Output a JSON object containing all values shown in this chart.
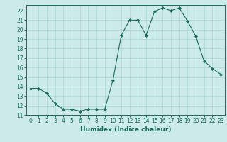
{
  "x": [
    0,
    1,
    2,
    3,
    4,
    5,
    6,
    7,
    8,
    9,
    10,
    11,
    12,
    13,
    14,
    15,
    16,
    17,
    18,
    19,
    20,
    21,
    22,
    23
  ],
  "y": [
    13.8,
    13.8,
    13.3,
    12.2,
    11.6,
    11.6,
    11.4,
    11.6,
    11.6,
    11.6,
    14.7,
    19.4,
    21.0,
    21.0,
    19.4,
    21.9,
    22.3,
    22.0,
    22.3,
    20.9,
    19.3,
    16.7,
    15.9,
    15.3
  ],
  "line_color": "#1a6b5a",
  "marker": "D",
  "marker_size": 2,
  "bg_color": "#cceae7",
  "grid_color": "#aad8d3",
  "xlabel": "Humidex (Indice chaleur)",
  "xlim": [
    -0.5,
    23.5
  ],
  "ylim": [
    11,
    22.6
  ],
  "yticks": [
    11,
    12,
    13,
    14,
    15,
    16,
    17,
    18,
    19,
    20,
    21,
    22
  ],
  "xticks": [
    0,
    1,
    2,
    3,
    4,
    5,
    6,
    7,
    8,
    9,
    10,
    11,
    12,
    13,
    14,
    15,
    16,
    17,
    18,
    19,
    20,
    21,
    22,
    23
  ],
  "tick_color": "#1a6b5a",
  "xlabel_fontsize": 6.5,
  "tick_fontsize": 5.5
}
